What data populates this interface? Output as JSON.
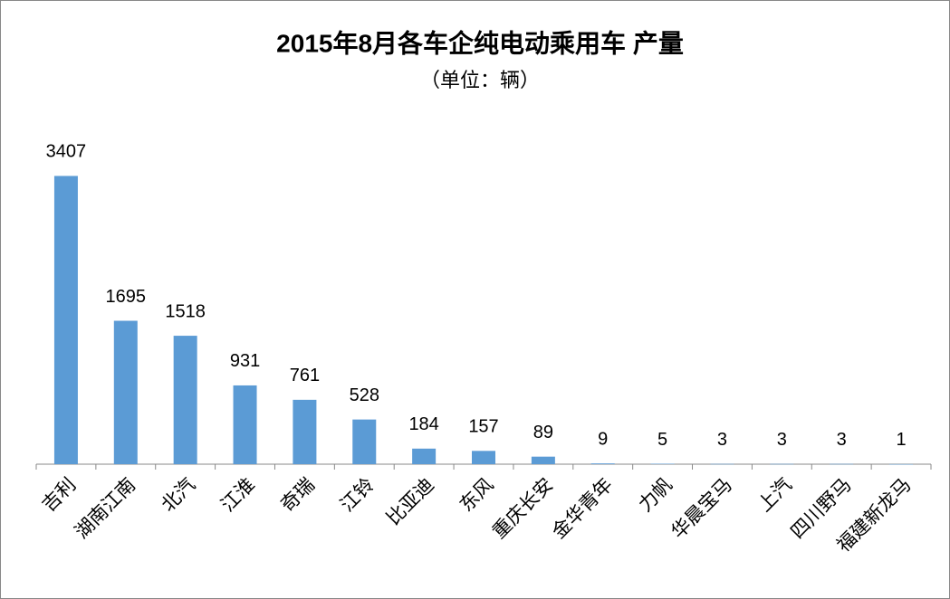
{
  "chart_data": {
    "type": "bar",
    "title": "2015年8月各车企纯电动乘用车 产量",
    "subtitle": "（单位：辆）",
    "categories": [
      "吉利",
      "湖南江南",
      "北汽",
      "江淮",
      "奇瑞",
      "江铃",
      "比亚迪",
      "东风",
      "重庆长安",
      "金华青年",
      "力帆",
      "华晨宝马",
      "上汽",
      "四川野马",
      "福建新龙马"
    ],
    "values": [
      3407,
      1695,
      1518,
      931,
      761,
      528,
      184,
      157,
      89,
      9,
      5,
      3,
      3,
      3,
      1
    ],
    "color": "#5b9bd5",
    "ylim": [
      0,
      4000
    ]
  }
}
